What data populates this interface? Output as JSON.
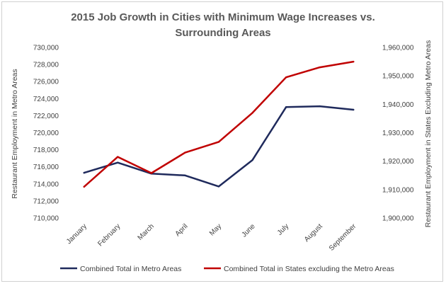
{
  "chart_data": {
    "type": "line",
    "title_lines": [
      "2015 Job Growth in Cities with Minimum Wage Increases vs.",
      "Surrounding Areas"
    ],
    "categories": [
      "January",
      "February",
      "March",
      "April",
      "May",
      "June",
      "July",
      "August",
      "September"
    ],
    "y_left": {
      "label": "Restaurant Employment  in Metro Areas",
      "ticks": [
        "710,000",
        "712,000",
        "714,000",
        "716,000",
        "718,000",
        "720,000",
        "722,000",
        "724,000",
        "726,000",
        "728,000",
        "730,000"
      ],
      "min": 710000,
      "max": 730000
    },
    "y_right": {
      "label": "Restaurant Employment  in States Excluding Metro Areas",
      "ticks": [
        "1,900,000",
        "1,910,000",
        "1,920,000",
        "1,930,000",
        "1,940,000",
        "1,950,000",
        "1,960,000"
      ],
      "min": 1900000,
      "max": 1960000
    },
    "series": [
      {
        "name": "Combined Total in Metro Areas",
        "axis": "left",
        "color": "#1f2a5c",
        "values": [
          715300,
          716500,
          715200,
          715000,
          713700,
          716800,
          723000,
          723100,
          722700
        ]
      },
      {
        "name": "Combined Total in States excluding the Metro Areas",
        "axis": "right",
        "color": "#c00000",
        "values": [
          1911000,
          1921500,
          1915800,
          1923000,
          1926800,
          1937000,
          1949500,
          1953000,
          1955000
        ]
      }
    ],
    "grid": false,
    "legend": "bottom"
  }
}
